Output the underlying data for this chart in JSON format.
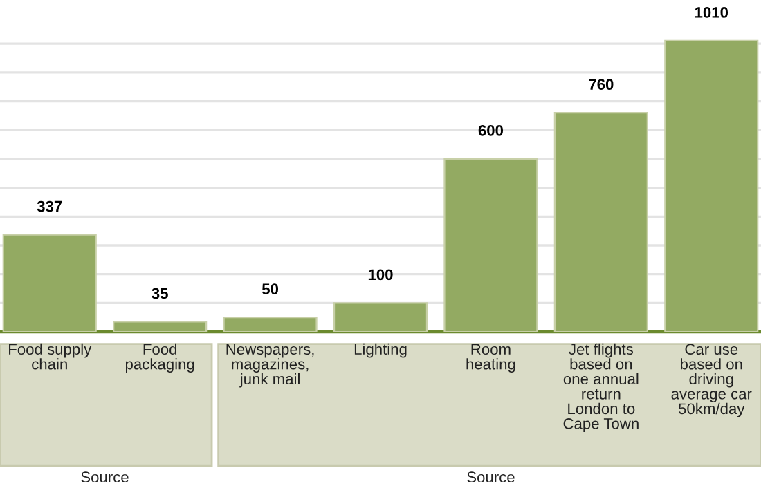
{
  "chart_data": {
    "type": "bar",
    "categories": [
      "Food supply\nchain",
      "Food\npackaging",
      "Newspapers,\nmagazines,\njunk mail",
      "Lighting",
      "Room\nheating",
      "Jet flights\nbased on\none annual\nreturn\nLondon to\nCape Town",
      "Car use\nbased on\ndriving\naverage car\n50km/day"
    ],
    "values": [
      337,
      35,
      50,
      100,
      600,
      760,
      1010
    ],
    "color": "#93aa62",
    "data_labels": true,
    "yticks": [
      {
        "value": 0,
        "label": null
      },
      {
        "value": 100,
        "label": null
      },
      {
        "value": 200,
        "label": null
      },
      {
        "value": 300,
        "label": null
      },
      {
        "value": 400,
        "label": null
      },
      {
        "value": 500,
        "label": null
      },
      {
        "value": 600,
        "label": null
      },
      {
        "value": 700,
        "label": null
      },
      {
        "value": 800,
        "label": null
      },
      {
        "value": 900,
        "label": null
      },
      {
        "value": 1000,
        "label": null
      }
    ],
    "grid": "y",
    "tick_labels": "x",
    "annotations": [
      "Source",
      "Source"
    ]
  }
}
